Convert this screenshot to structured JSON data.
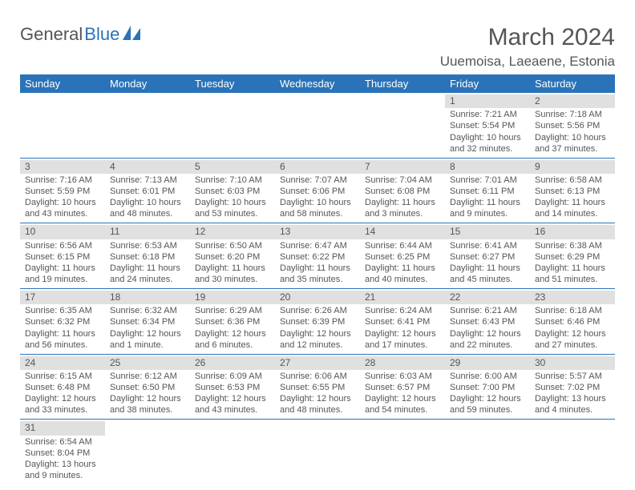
{
  "logo": {
    "part1": "General",
    "part2": "Blue"
  },
  "title": "March 2024",
  "location": "Uuemoisa, Laeaene, Estonia",
  "colors": {
    "brand": "#2a73b8",
    "text": "#555555",
    "daynum_bg": "#e0e0e0",
    "page_bg": "#ffffff"
  },
  "day_headers": [
    "Sunday",
    "Monday",
    "Tuesday",
    "Wednesday",
    "Thursday",
    "Friday",
    "Saturday"
  ],
  "days": [
    {
      "n": "1",
      "rise": "Sunrise: 7:21 AM",
      "set": "Sunset: 5:54 PM",
      "d": "Daylight: 10 hours and 32 minutes."
    },
    {
      "n": "2",
      "rise": "Sunrise: 7:18 AM",
      "set": "Sunset: 5:56 PM",
      "d": "Daylight: 10 hours and 37 minutes."
    },
    {
      "n": "3",
      "rise": "Sunrise: 7:16 AM",
      "set": "Sunset: 5:59 PM",
      "d": "Daylight: 10 hours and 43 minutes."
    },
    {
      "n": "4",
      "rise": "Sunrise: 7:13 AM",
      "set": "Sunset: 6:01 PM",
      "d": "Daylight: 10 hours and 48 minutes."
    },
    {
      "n": "5",
      "rise": "Sunrise: 7:10 AM",
      "set": "Sunset: 6:03 PM",
      "d": "Daylight: 10 hours and 53 minutes."
    },
    {
      "n": "6",
      "rise": "Sunrise: 7:07 AM",
      "set": "Sunset: 6:06 PM",
      "d": "Daylight: 10 hours and 58 minutes."
    },
    {
      "n": "7",
      "rise": "Sunrise: 7:04 AM",
      "set": "Sunset: 6:08 PM",
      "d": "Daylight: 11 hours and 3 minutes."
    },
    {
      "n": "8",
      "rise": "Sunrise: 7:01 AM",
      "set": "Sunset: 6:11 PM",
      "d": "Daylight: 11 hours and 9 minutes."
    },
    {
      "n": "9",
      "rise": "Sunrise: 6:58 AM",
      "set": "Sunset: 6:13 PM",
      "d": "Daylight: 11 hours and 14 minutes."
    },
    {
      "n": "10",
      "rise": "Sunrise: 6:56 AM",
      "set": "Sunset: 6:15 PM",
      "d": "Daylight: 11 hours and 19 minutes."
    },
    {
      "n": "11",
      "rise": "Sunrise: 6:53 AM",
      "set": "Sunset: 6:18 PM",
      "d": "Daylight: 11 hours and 24 minutes."
    },
    {
      "n": "12",
      "rise": "Sunrise: 6:50 AM",
      "set": "Sunset: 6:20 PM",
      "d": "Daylight: 11 hours and 30 minutes."
    },
    {
      "n": "13",
      "rise": "Sunrise: 6:47 AM",
      "set": "Sunset: 6:22 PM",
      "d": "Daylight: 11 hours and 35 minutes."
    },
    {
      "n": "14",
      "rise": "Sunrise: 6:44 AM",
      "set": "Sunset: 6:25 PM",
      "d": "Daylight: 11 hours and 40 minutes."
    },
    {
      "n": "15",
      "rise": "Sunrise: 6:41 AM",
      "set": "Sunset: 6:27 PM",
      "d": "Daylight: 11 hours and 45 minutes."
    },
    {
      "n": "16",
      "rise": "Sunrise: 6:38 AM",
      "set": "Sunset: 6:29 PM",
      "d": "Daylight: 11 hours and 51 minutes."
    },
    {
      "n": "17",
      "rise": "Sunrise: 6:35 AM",
      "set": "Sunset: 6:32 PM",
      "d": "Daylight: 11 hours and 56 minutes."
    },
    {
      "n": "18",
      "rise": "Sunrise: 6:32 AM",
      "set": "Sunset: 6:34 PM",
      "d": "Daylight: 12 hours and 1 minute."
    },
    {
      "n": "19",
      "rise": "Sunrise: 6:29 AM",
      "set": "Sunset: 6:36 PM",
      "d": "Daylight: 12 hours and 6 minutes."
    },
    {
      "n": "20",
      "rise": "Sunrise: 6:26 AM",
      "set": "Sunset: 6:39 PM",
      "d": "Daylight: 12 hours and 12 minutes."
    },
    {
      "n": "21",
      "rise": "Sunrise: 6:24 AM",
      "set": "Sunset: 6:41 PM",
      "d": "Daylight: 12 hours and 17 minutes."
    },
    {
      "n": "22",
      "rise": "Sunrise: 6:21 AM",
      "set": "Sunset: 6:43 PM",
      "d": "Daylight: 12 hours and 22 minutes."
    },
    {
      "n": "23",
      "rise": "Sunrise: 6:18 AM",
      "set": "Sunset: 6:46 PM",
      "d": "Daylight: 12 hours and 27 minutes."
    },
    {
      "n": "24",
      "rise": "Sunrise: 6:15 AM",
      "set": "Sunset: 6:48 PM",
      "d": "Daylight: 12 hours and 33 minutes."
    },
    {
      "n": "25",
      "rise": "Sunrise: 6:12 AM",
      "set": "Sunset: 6:50 PM",
      "d": "Daylight: 12 hours and 38 minutes."
    },
    {
      "n": "26",
      "rise": "Sunrise: 6:09 AM",
      "set": "Sunset: 6:53 PM",
      "d": "Daylight: 12 hours and 43 minutes."
    },
    {
      "n": "27",
      "rise": "Sunrise: 6:06 AM",
      "set": "Sunset: 6:55 PM",
      "d": "Daylight: 12 hours and 48 minutes."
    },
    {
      "n": "28",
      "rise": "Sunrise: 6:03 AM",
      "set": "Sunset: 6:57 PM",
      "d": "Daylight: 12 hours and 54 minutes."
    },
    {
      "n": "29",
      "rise": "Sunrise: 6:00 AM",
      "set": "Sunset: 7:00 PM",
      "d": "Daylight: 12 hours and 59 minutes."
    },
    {
      "n": "30",
      "rise": "Sunrise: 5:57 AM",
      "set": "Sunset: 7:02 PM",
      "d": "Daylight: 13 hours and 4 minutes."
    },
    {
      "n": "31",
      "rise": "Sunrise: 6:54 AM",
      "set": "Sunset: 8:04 PM",
      "d": "Daylight: 13 hours and 9 minutes."
    }
  ],
  "leading_blanks": 5,
  "trailing_blanks": 6
}
